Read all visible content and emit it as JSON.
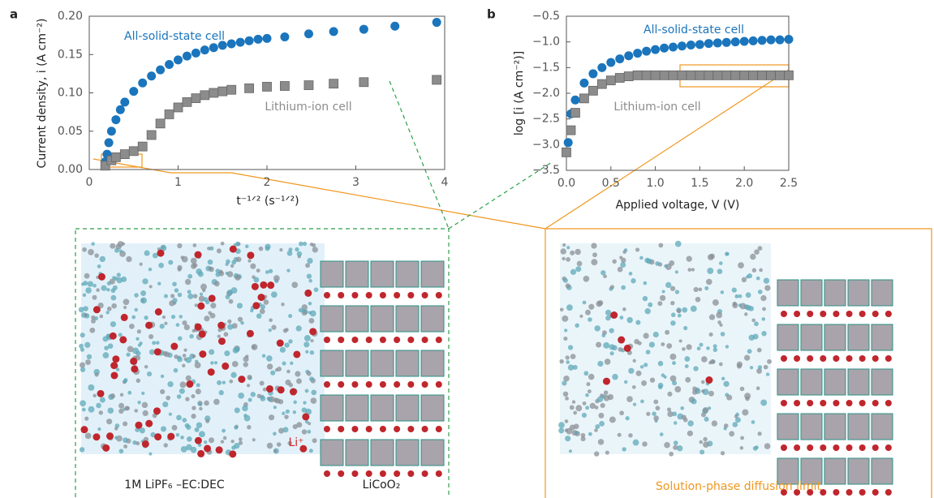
{
  "chart_data": [
    {
      "type": "scatter",
      "panel_label": "a",
      "xlabel": "t⁻¹ᐟ² (s⁻¹ᐟ²)",
      "ylabel": "Current density, i (A cm⁻²)",
      "xlim": [
        0,
        4
      ],
      "xticks": [
        0,
        1,
        2,
        3,
        4
      ],
      "ylim": [
        0,
        0.2
      ],
      "yticks": [
        {
          "value": 0,
          "label": "0.00"
        },
        {
          "value": 0.05,
          "label": "0.05"
        },
        {
          "value": 0.1,
          "label": "0.10"
        },
        {
          "value": 0.15,
          "label": "0.15"
        },
        {
          "value": 0.2,
          "label": "0.20"
        }
      ],
      "series": [
        {
          "name": "All-solid-state cell",
          "color": "#1a75bc",
          "marker": "circle",
          "x": [
            0.18,
            0.2,
            0.22,
            0.25,
            0.3,
            0.35,
            0.4,
            0.5,
            0.6,
            0.7,
            0.8,
            0.9,
            1.0,
            1.1,
            1.2,
            1.3,
            1.4,
            1.5,
            1.6,
            1.7,
            1.8,
            1.9,
            2.0,
            2.2,
            2.47,
            2.75,
            3.09,
            3.44,
            3.91
          ],
          "values": [
            0.01,
            0.02,
            0.035,
            0.05,
            0.065,
            0.078,
            0.088,
            0.102,
            0.113,
            0.122,
            0.13,
            0.137,
            0.143,
            0.148,
            0.152,
            0.156,
            0.159,
            0.162,
            0.164,
            0.166,
            0.168,
            0.17,
            0.171,
            0.173,
            0.177,
            0.18,
            0.183,
            0.187,
            0.192
          ]
        },
        {
          "name": "Lithium-ion cell",
          "color": "#8c8c8c",
          "marker": "square",
          "x": [
            0.18,
            0.25,
            0.3,
            0.4,
            0.5,
            0.6,
            0.7,
            0.8,
            0.9,
            1.0,
            1.1,
            1.2,
            1.3,
            1.4,
            1.5,
            1.6,
            1.8,
            2.0,
            2.2,
            2.47,
            2.75,
            3.09,
            3.91
          ],
          "values": [
            0.005,
            0.012,
            0.016,
            0.02,
            0.024,
            0.03,
            0.045,
            0.06,
            0.072,
            0.081,
            0.088,
            0.093,
            0.097,
            0.1,
            0.102,
            0.104,
            0.106,
            0.108,
            0.109,
            0.11,
            0.112,
            0.114,
            0.117
          ]
        }
      ]
    },
    {
      "type": "scatter",
      "panel_label": "b",
      "xlabel": "Applied voltage, V (V)",
      "ylabel": "log [i (A cm⁻²)]",
      "xlim": [
        0,
        2.5
      ],
      "xticks": [
        {
          "value": 0,
          "label": "0.0"
        },
        0.5,
        {
          "value": 1,
          "label": "1.0"
        },
        1.5,
        {
          "value": 2,
          "label": "2.0"
        },
        2.5
      ],
      "ylim": [
        -3.5,
        -0.5
      ],
      "yticks": [
        {
          "value": -3.5,
          "label": "−3.5"
        },
        {
          "value": -3,
          "label": "−3.0"
        },
        {
          "value": -2.5,
          "label": "−2.5"
        },
        {
          "value": -2,
          "label": "−2.0"
        },
        {
          "value": -1.5,
          "label": "−1.5"
        },
        {
          "value": -1,
          "label": "−1.0"
        },
        {
          "value": -0.5,
          "label": "−0.5"
        }
      ],
      "series": [
        {
          "name": "All-solid-state cell",
          "color": "#1a75bc",
          "marker": "circle",
          "x": [
            0.02,
            0.05,
            0.1,
            0.2,
            0.3,
            0.4,
            0.5,
            0.6,
            0.7,
            0.8,
            0.9,
            1.0,
            1.1,
            1.2,
            1.3,
            1.4,
            1.5,
            1.6,
            1.7,
            1.8,
            1.9,
            2.0,
            2.1,
            2.2,
            2.3,
            2.4,
            2.5
          ],
          "values": [
            -2.96,
            -2.4,
            -2.13,
            -1.8,
            -1.62,
            -1.5,
            -1.4,
            -1.33,
            -1.27,
            -1.22,
            -1.18,
            -1.15,
            -1.12,
            -1.1,
            -1.08,
            -1.06,
            -1.05,
            -1.03,
            -1.02,
            -1.01,
            -1.0,
            -0.99,
            -0.98,
            -0.97,
            -0.96,
            -0.96,
            -0.95
          ]
        },
        {
          "name": "Lithium-ion cell",
          "color": "#8c8c8c",
          "marker": "square",
          "x": [
            0.0,
            0.05,
            0.1,
            0.2,
            0.3,
            0.4,
            0.5,
            0.6,
            0.7,
            0.8,
            0.9,
            1.0,
            1.1,
            1.2,
            1.3,
            1.4,
            1.5,
            1.6,
            1.7,
            1.8,
            1.9,
            2.0,
            2.1,
            2.2,
            2.3,
            2.4,
            2.5
          ],
          "values": [
            -3.15,
            -2.72,
            -2.38,
            -2.1,
            -1.95,
            -1.82,
            -1.75,
            -1.7,
            -1.67,
            -1.65,
            -1.65,
            -1.65,
            -1.65,
            -1.65,
            -1.65,
            -1.65,
            -1.65,
            -1.65,
            -1.65,
            -1.65,
            -1.65,
            -1.65,
            -1.65,
            -1.65,
            -1.65,
            -1.65,
            -1.65
          ]
        }
      ]
    }
  ],
  "illustrations": {
    "electrolyte_label": "1M LiPF₆ –EC:DEC",
    "cathode_label": "LiCoO₂",
    "ion_label": "Li⁺",
    "right_caption": "Solution-phase diffusion limit"
  }
}
